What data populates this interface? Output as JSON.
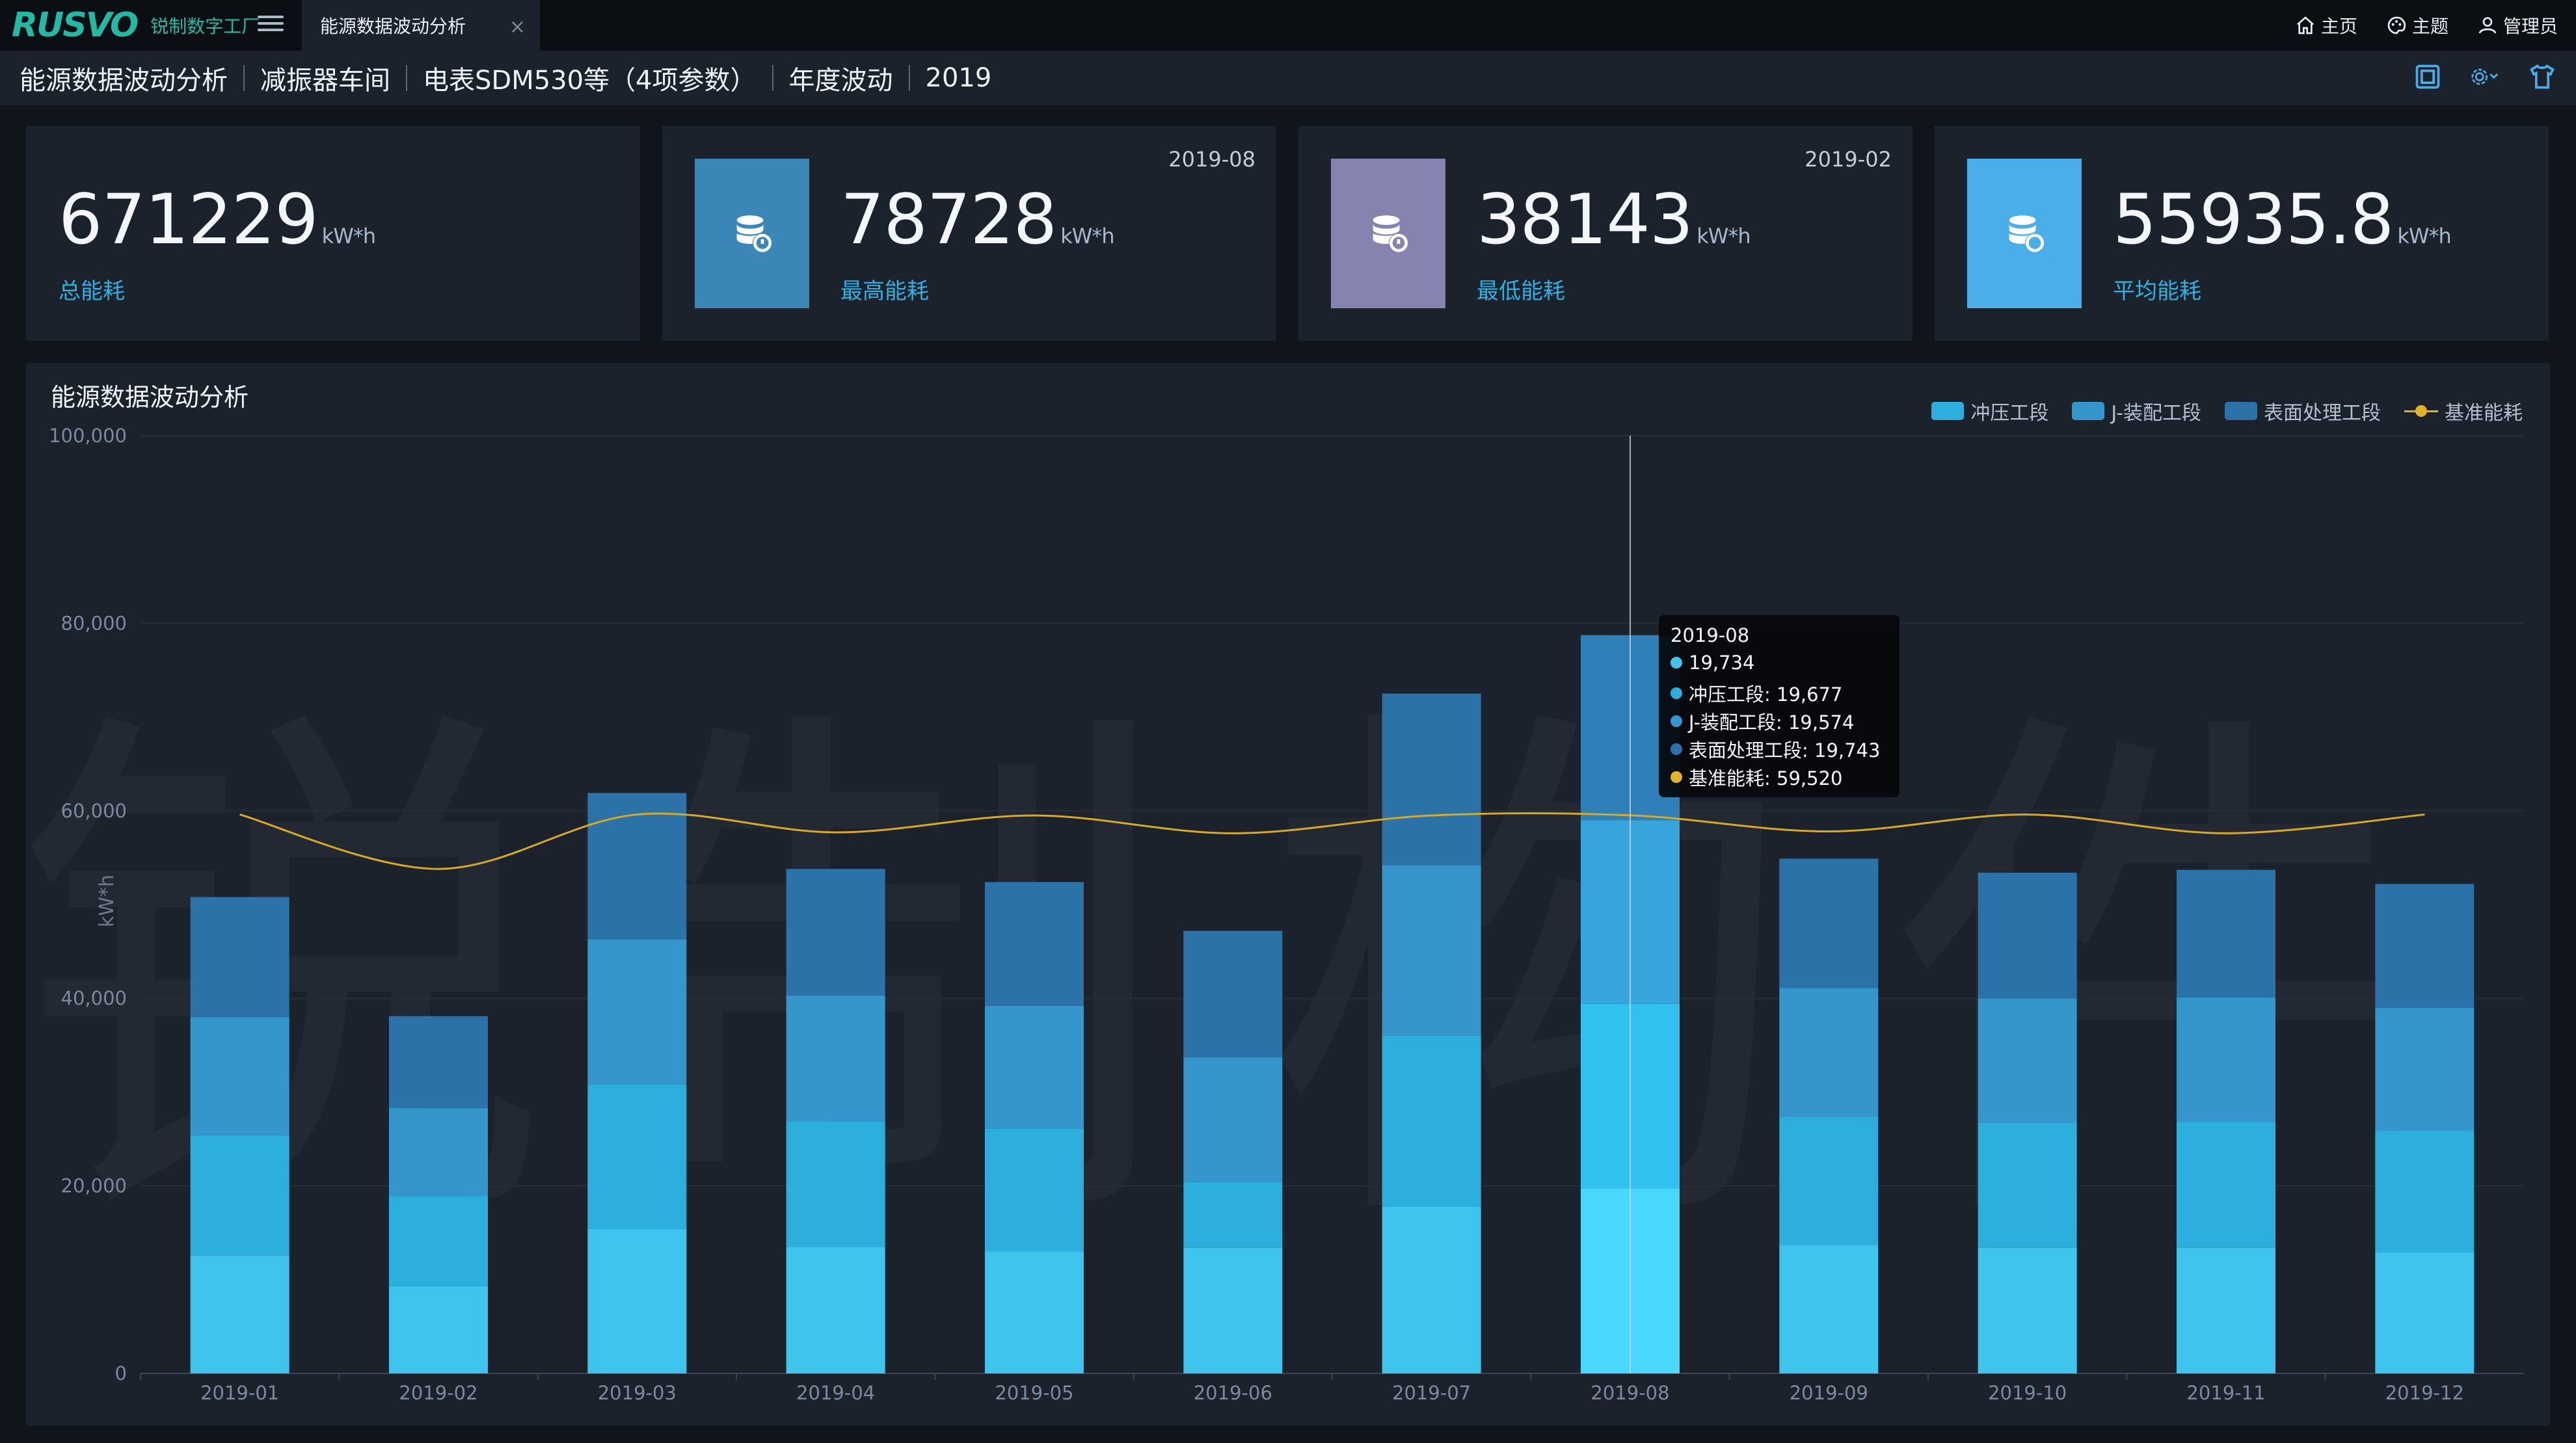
{
  "app": {
    "logo_text": "RUSVO",
    "logo_subtitle": "锐制数字工厂"
  },
  "tab": {
    "label": "能源数据波动分析",
    "close": "×"
  },
  "nav": {
    "home": "主页",
    "theme": "主题",
    "admin": "管理员"
  },
  "breadcrumb": [
    "能源数据波动分析",
    "减振器车间",
    "电表SDM530等（4项参数）",
    "年度波动",
    "2019"
  ],
  "stats": [
    {
      "value": "671229",
      "unit": "kW*h",
      "label": "总能耗",
      "date": ""
    },
    {
      "value": "78728",
      "unit": "kW*h",
      "label": "最高能耗",
      "date": "2019-08",
      "icon_color": "#3a86b7"
    },
    {
      "value": "38143",
      "unit": "kW*h",
      "label": "最低能耗",
      "date": "2019-02",
      "icon_color": "#8783b0"
    },
    {
      "value": "55935.8",
      "unit": "kW*h",
      "label": "平均能耗",
      "date": "",
      "icon_color": "#4aaee8"
    }
  ],
  "watermark": "锐制构件",
  "chart_data": {
    "type": "bar",
    "stacked": true,
    "title": "能源数据波动分析",
    "ylabel": "kW*h",
    "xlabel": "",
    "ylim": [
      0,
      100000
    ],
    "yticks": [
      "0",
      "20,000",
      "40,000",
      "60,000",
      "80,000",
      "100,000"
    ],
    "grid": true,
    "legend_position": "top-right",
    "categories": [
      "2019-01",
      "2019-02",
      "2019-03",
      "2019-04",
      "2019-05",
      "2019-06",
      "2019-07",
      "2019-08",
      "2019-09",
      "2019-10",
      "2019-11",
      "2019-12"
    ],
    "series": [
      {
        "name": "",
        "color": "#3fc5ed",
        "values": [
          12600,
          9300,
          15400,
          13500,
          13000,
          13400,
          17800,
          19734,
          13700,
          13400,
          13400,
          12900
        ]
      },
      {
        "name": "冲压工段",
        "color": "#2cafdc",
        "values": [
          12800,
          9600,
          15400,
          13400,
          13100,
          7000,
          18200,
          19677,
          13700,
          13300,
          13400,
          13000
        ]
      },
      {
        "name": "J-装配工段",
        "color": "#3596cc",
        "values": [
          12600,
          9400,
          15500,
          13400,
          13100,
          13300,
          18200,
          19574,
          13700,
          13300,
          13300,
          13100
        ]
      },
      {
        "name": "表面处理工段",
        "color": "#2b72a8",
        "values": [
          12800,
          9800,
          15600,
          13500,
          13200,
          13500,
          18300,
          19743,
          13800,
          13400,
          13600,
          13200
        ]
      }
    ],
    "baseline": {
      "name": "基准能耗",
      "color": "#d9aa1e",
      "values": [
        59600,
        53800,
        59600,
        57700,
        59500,
        57600,
        59500,
        59520,
        57800,
        59600,
        57600,
        59600
      ]
    },
    "tooltip": {
      "category": "2019-08",
      "rows": [
        {
          "text": "19,734",
          "color": "#3fc5ed"
        },
        {
          "text": "冲压工段: 19,677",
          "color": "#2cafdc"
        },
        {
          "text": "J-装配工段: 19,574",
          "color": "#3596cc"
        },
        {
          "text": "表面处理工段: 19,743",
          "color": "#2b72a8"
        },
        {
          "text": "基准能耗: 59,520",
          "color": "#e4b323"
        }
      ]
    }
  }
}
